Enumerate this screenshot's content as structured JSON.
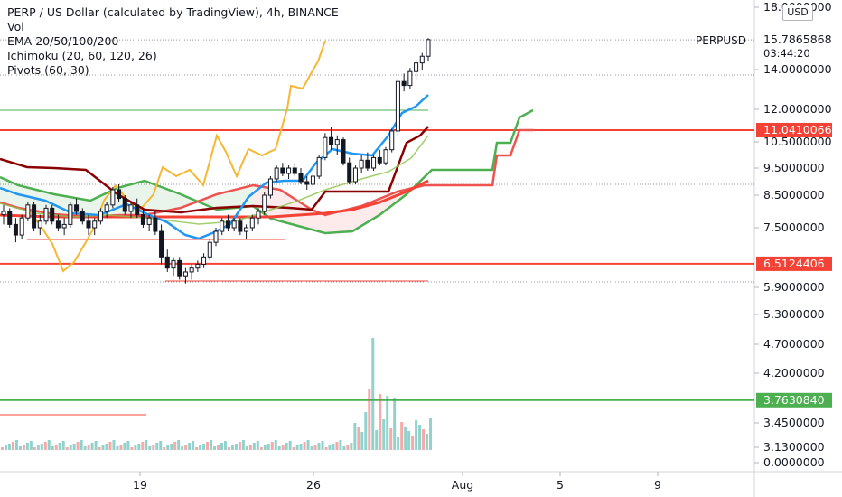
{
  "header": {
    "title": "PERP / US Dollar (calculated by TradingView), 4h, BINANCE",
    "indicators": [
      "Vol",
      "EMA 20/50/100/200",
      "Ichimoku (20, 60, 120, 26)",
      "Pivots (60, 30)"
    ],
    "currency_button": "USD"
  },
  "ticker": {
    "symbol": "PERPUSD",
    "last_price": "15.7865868",
    "countdown": "03:44:20"
  },
  "colors": {
    "candle_up": "#26a69a",
    "candle_down": "#ef5350",
    "ema20": "#2196f3",
    "ema50": "#4caf50",
    "ema100": "#f44336",
    "ema200": "#8b0000",
    "ichimoku_a": "#4caf50",
    "ichimoku_b": "#ef5350",
    "chikou": "#f7b731",
    "pivot_green": "#4caf50",
    "pivot_red": "#f44336"
  },
  "chart_data": {
    "type": "candlestick",
    "x_ticks": [
      "19",
      "26",
      "Aug",
      "5",
      "9"
    ],
    "y_ticks": [
      "18.0000000",
      "14.0000000",
      "12.0000000",
      "10.5000000",
      "9.5000000",
      "8.5000000",
      "7.5000000",
      "5.9000000",
      "5.3000000",
      "4.7000000",
      "4.2000000",
      "3.4500000",
      "3.1300000",
      "0.0000000"
    ],
    "price_labels": [
      {
        "text": "15.7865868",
        "color": "#ffffff",
        "kind": "last"
      },
      {
        "text": "11.0410066",
        "color": "#f44336",
        "kind": "pivot"
      },
      {
        "text": "6.5124406",
        "color": "#f44336",
        "kind": "pivot"
      },
      {
        "text": "3.7630840",
        "color": "#4caf50",
        "kind": "pivot"
      }
    ],
    "candles": [
      [
        7.9,
        8.2,
        7.6,
        8.0
      ],
      [
        8.0,
        8.1,
        7.5,
        7.6
      ],
      [
        7.6,
        7.8,
        7.1,
        7.3
      ],
      [
        7.3,
        7.9,
        7.2,
        7.8
      ],
      [
        7.8,
        8.3,
        7.7,
        8.2
      ],
      [
        8.2,
        8.3,
        7.4,
        7.5
      ],
      [
        7.5,
        7.9,
        7.3,
        7.7
      ],
      [
        7.7,
        8.2,
        7.6,
        8.1
      ],
      [
        8.1,
        8.2,
        7.6,
        7.7
      ],
      [
        7.7,
        7.9,
        7.4,
        7.5
      ],
      [
        7.5,
        7.8,
        7.3,
        7.6
      ],
      [
        7.6,
        8.3,
        7.5,
        8.2
      ],
      [
        8.2,
        8.4,
        7.9,
        8.0
      ],
      [
        8.0,
        8.1,
        7.6,
        7.7
      ],
      [
        7.7,
        7.9,
        7.3,
        7.5
      ],
      [
        7.5,
        7.8,
        7.3,
        7.7
      ],
      [
        7.7,
        8.1,
        7.6,
        8.0
      ],
      [
        8.0,
        8.3,
        7.8,
        8.2
      ],
      [
        8.2,
        8.8,
        8.1,
        8.7
      ],
      [
        8.7,
        8.9,
        8.3,
        8.4
      ],
      [
        8.4,
        8.5,
        7.9,
        8.0
      ],
      [
        8.0,
        8.3,
        7.8,
        8.2
      ],
      [
        8.2,
        8.4,
        7.8,
        7.9
      ],
      [
        7.9,
        8.1,
        7.5,
        7.6
      ],
      [
        7.6,
        7.9,
        7.4,
        7.8
      ],
      [
        7.8,
        8.0,
        7.3,
        7.4
      ],
      [
        7.4,
        7.6,
        6.5,
        6.7
      ],
      [
        6.7,
        6.9,
        6.3,
        6.4
      ],
      [
        6.4,
        6.7,
        6.2,
        6.6
      ],
      [
        6.6,
        6.7,
        6.1,
        6.2
      ],
      [
        6.2,
        6.4,
        6.0,
        6.3
      ],
      [
        6.3,
        6.5,
        6.1,
        6.4
      ],
      [
        6.4,
        6.6,
        6.3,
        6.5
      ],
      [
        6.5,
        6.8,
        6.4,
        6.7
      ],
      [
        6.7,
        7.2,
        6.6,
        7.1
      ],
      [
        7.1,
        7.5,
        7.0,
        7.4
      ],
      [
        7.4,
        7.8,
        7.3,
        7.7
      ],
      [
        7.7,
        7.9,
        7.4,
        7.5
      ],
      [
        7.5,
        7.8,
        7.4,
        7.7
      ],
      [
        7.7,
        7.8,
        7.3,
        7.4
      ],
      [
        7.4,
        7.6,
        7.2,
        7.5
      ],
      [
        7.5,
        7.9,
        7.4,
        7.8
      ],
      [
        7.8,
        8.1,
        7.6,
        8.0
      ],
      [
        8.0,
        8.6,
        7.9,
        8.5
      ],
      [
        8.5,
        9.2,
        8.4,
        9.1
      ],
      [
        9.1,
        9.6,
        9.0,
        9.5
      ],
      [
        9.5,
        9.7,
        9.2,
        9.3
      ],
      [
        9.3,
        9.6,
        9.1,
        9.5
      ],
      [
        9.5,
        9.7,
        9.2,
        9.3
      ],
      [
        9.3,
        9.5,
        8.9,
        9.0
      ],
      [
        9.0,
        9.2,
        8.7,
        8.9
      ],
      [
        8.9,
        9.3,
        8.8,
        9.2
      ],
      [
        9.2,
        10.0,
        9.1,
        9.9
      ],
      [
        9.9,
        10.9,
        9.8,
        10.7
      ],
      [
        10.7,
        11.2,
        10.2,
        10.4
      ],
      [
        10.4,
        10.8,
        10.0,
        10.6
      ],
      [
        10.6,
        10.7,
        9.6,
        9.7
      ],
      [
        9.7,
        9.9,
        8.9,
        9.0
      ],
      [
        9.0,
        9.6,
        8.9,
        9.5
      ],
      [
        9.5,
        10.0,
        9.3,
        9.8
      ],
      [
        9.8,
        10.1,
        9.4,
        9.5
      ],
      [
        9.5,
        10.0,
        9.4,
        9.9
      ],
      [
        9.9,
        10.2,
        9.6,
        9.7
      ],
      [
        9.7,
        10.3,
        9.6,
        10.2
      ],
      [
        10.2,
        11.1,
        10.1,
        11.0
      ],
      [
        11.0,
        13.6,
        10.8,
        13.4
      ],
      [
        13.4,
        13.8,
        12.9,
        13.2
      ],
      [
        13.2,
        14.1,
        13.0,
        13.9
      ],
      [
        13.9,
        14.6,
        13.5,
        14.4
      ],
      [
        14.4,
        15.0,
        14.0,
        14.8
      ],
      [
        14.8,
        15.9,
        14.5,
        15.8
      ]
    ]
  }
}
